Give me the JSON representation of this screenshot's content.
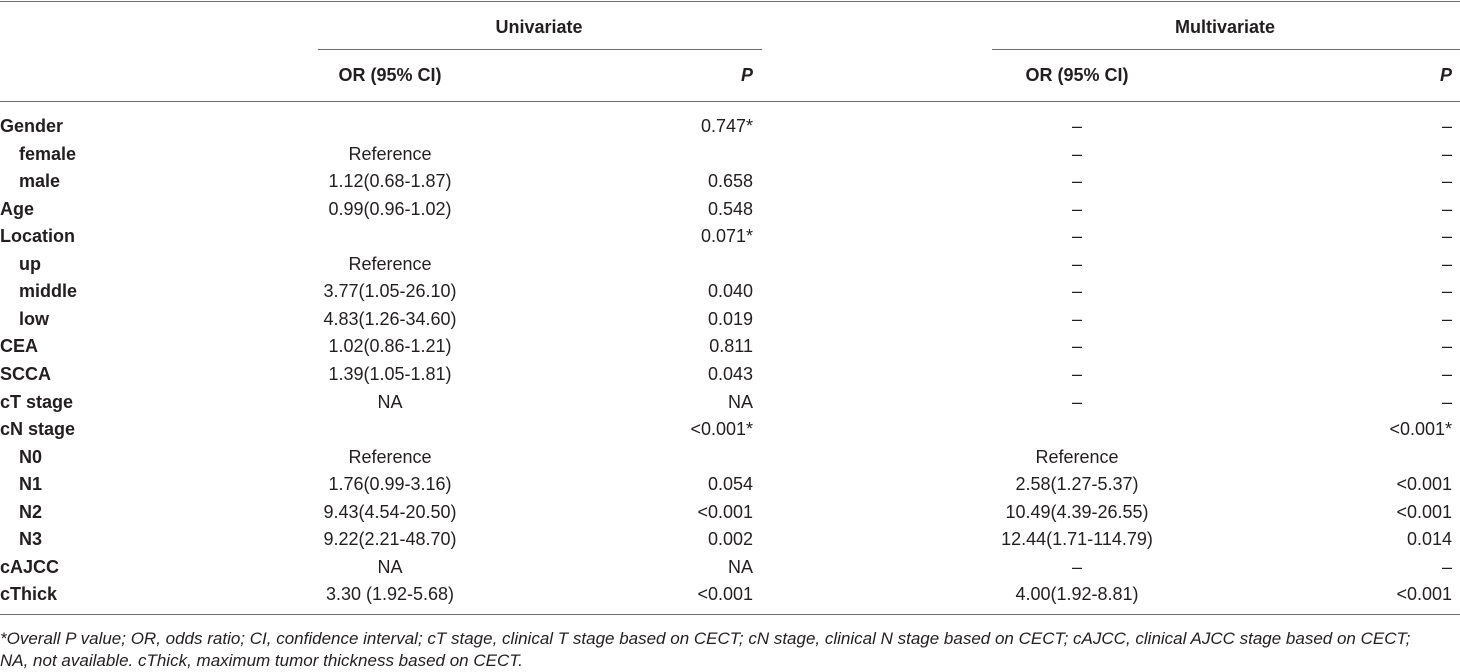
{
  "header": {
    "univariate": "Univariate",
    "multivariate": "Multivariate",
    "or_label": "OR (95% CI)",
    "p_label": "P"
  },
  "rows": [
    {
      "label": "Gender",
      "sub": false,
      "or1": "",
      "p1": "0.747*",
      "or2": "–",
      "p2": "–"
    },
    {
      "label": "female",
      "sub": true,
      "or1": "Reference",
      "p1": "",
      "or2": "–",
      "p2": "–"
    },
    {
      "label": "male",
      "sub": true,
      "or1": "1.12(0.68-1.87)",
      "p1": "0.658",
      "or2": "–",
      "p2": "–"
    },
    {
      "label": "Age",
      "sub": false,
      "or1": "0.99(0.96-1.02)",
      "p1": "0.548",
      "or2": "–",
      "p2": "–"
    },
    {
      "label": "Location",
      "sub": false,
      "or1": "",
      "p1": "0.071*",
      "or2": "–",
      "p2": "–"
    },
    {
      "label": "up",
      "sub": true,
      "or1": "Reference",
      "p1": "",
      "or2": "–",
      "p2": "–"
    },
    {
      "label": "middle",
      "sub": true,
      "or1": "3.77(1.05-26.10)",
      "p1": "0.040",
      "or2": "–",
      "p2": "–"
    },
    {
      "label": "low",
      "sub": true,
      "or1": "4.83(1.26-34.60)",
      "p1": "0.019",
      "or2": "–",
      "p2": "–"
    },
    {
      "label": "CEA",
      "sub": false,
      "or1": "1.02(0.86-1.21)",
      "p1": "0.811",
      "or2": "–",
      "p2": "–"
    },
    {
      "label": "SCCA",
      "sub": false,
      "or1": "1.39(1.05-1.81)",
      "p1": "0.043",
      "or2": "–",
      "p2": "–"
    },
    {
      "label": "cT stage",
      "sub": false,
      "or1": "NA",
      "p1": "NA",
      "or2": "–",
      "p2": "–"
    },
    {
      "label": "cN stage",
      "sub": false,
      "or1": "",
      "p1": "<0.001*",
      "or2": "",
      "p2": "<0.001*"
    },
    {
      "label": "N0",
      "sub": true,
      "or1": "Reference",
      "p1": "",
      "or2": "Reference",
      "p2": ""
    },
    {
      "label": "N1",
      "sub": true,
      "or1": "1.76(0.99-3.16)",
      "p1": "0.054",
      "or2": "2.58(1.27-5.37)",
      "p2": "<0.001"
    },
    {
      "label": "N2",
      "sub": true,
      "or1": "9.43(4.54-20.50)",
      "p1": "<0.001",
      "or2": "10.49(4.39-26.55)",
      "p2": "<0.001"
    },
    {
      "label": "N3",
      "sub": true,
      "or1": "9.22(2.21-48.70)",
      "p1": "0.002",
      "or2": "12.44(1.71-114.79)",
      "p2": "0.014"
    },
    {
      "label": "cAJCC",
      "sub": false,
      "or1": "NA",
      "p1": "NA",
      "or2": "–",
      "p2": "–"
    },
    {
      "label": "cThick",
      "sub": false,
      "or1": "3.30 (1.92-5.68)",
      "p1": "<0.001",
      "or2": "4.00(1.92-8.81)",
      "p2": "<0.001"
    }
  ],
  "footnote": {
    "line1": "*Overall P value; OR, odds ratio; CI, confidence interval; cT stage, clinical T stage based on CECT; cN stage, clinical N stage based on CECT; cAJCC, clinical AJCC stage based on CECT;",
    "line2": "NA, not available. cThick, maximum tumor thickness based on CECT."
  }
}
